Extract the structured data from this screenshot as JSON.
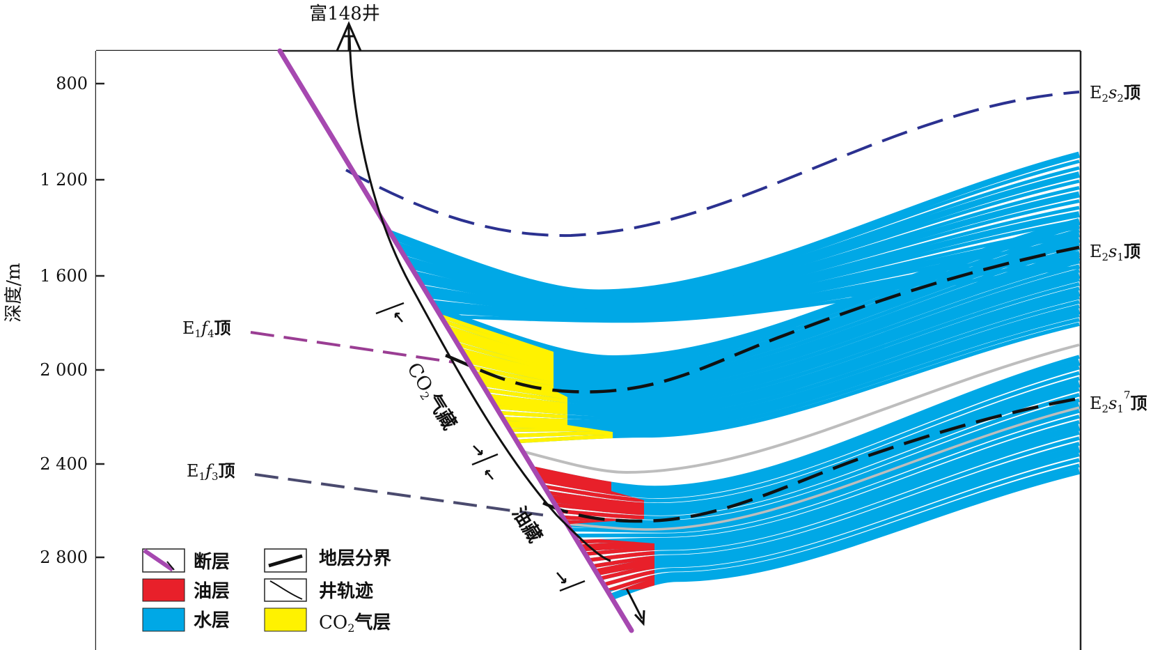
{
  "well_name": "富148井",
  "axis": {
    "ylabel": "深度/m",
    "ticks": [
      "800",
      "1 200",
      "1 600",
      "2 000",
      "2 400",
      "2 800"
    ]
  },
  "formations": {
    "e2s2": {
      "base": "E",
      "sub1": "2",
      "ital": "s",
      "sub2": "2",
      "suffix": "顶"
    },
    "e2s1": {
      "base": "E",
      "sub1": "2",
      "ital": "s",
      "sub2": "1",
      "suffix": "顶"
    },
    "e2s17": {
      "base": "E",
      "sub1": "2",
      "ital": "s",
      "sub2": "1",
      "sup": "7",
      "suffix": "顶"
    },
    "e1f4": {
      "base": "E",
      "sub1": "1",
      "ital": "f",
      "sub2": "4",
      "suffix": "顶"
    },
    "e1f3": {
      "base": "E",
      "sub1": "1",
      "ital": "f",
      "sub2": "3",
      "suffix": "顶"
    }
  },
  "reservoirs": {
    "co2": {
      "pre": "CO",
      "sub": "2",
      "post": "气藏"
    },
    "oil": "油藏"
  },
  "legend": {
    "fault": "断层",
    "oil_layer": "油层",
    "water_layer": "水层",
    "boundary": "地层分界",
    "trajectory": "井轨迹",
    "co2_layer": {
      "pre": "CO",
      "sub": "2",
      "post": "气层"
    }
  },
  "colors": {
    "water": "#00a8e6",
    "oil": "#e8202a",
    "co2": "#fff200",
    "fault": "#a648b0",
    "e2s2_line": "#2b3190",
    "e1f4_line": "#9a3d93",
    "e1f3_line": "#4a4a6e",
    "gray_line": "#bdbdbd"
  }
}
